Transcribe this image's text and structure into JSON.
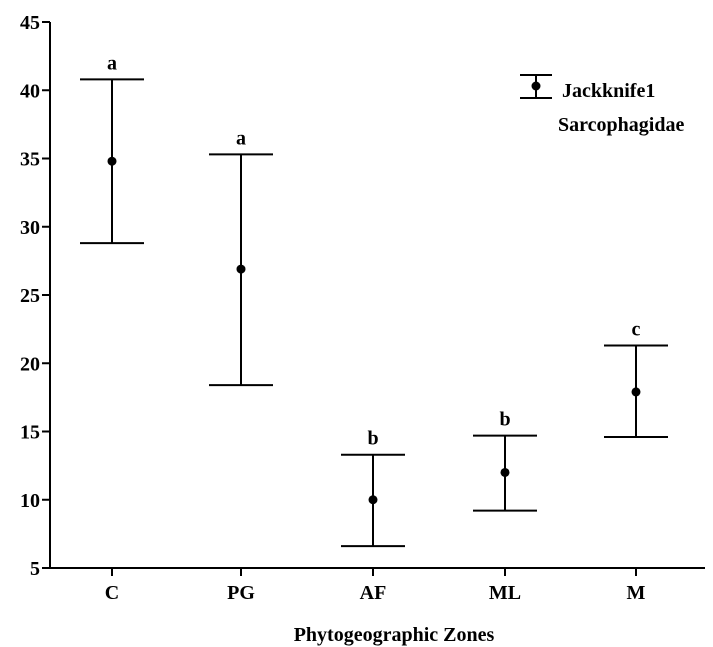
{
  "chart_data": {
    "type": "errorbar",
    "title": "",
    "xlabel": "Phytogeographic Zones",
    "ylabel": "",
    "ylim": [
      5,
      45
    ],
    "yticks": [
      5,
      10,
      15,
      20,
      25,
      30,
      35,
      40,
      45
    ],
    "categories": [
      "C",
      "PG",
      "AF",
      "ML",
      "M"
    ],
    "series": [
      {
        "legend": [
          "Jackknife1",
          "Sarcophagidae"
        ],
        "mean": [
          34.8,
          26.9,
          10.0,
          12.0,
          17.9
        ],
        "lower": [
          28.8,
          18.4,
          6.6,
          9.2,
          14.6
        ],
        "upper": [
          40.8,
          35.3,
          13.3,
          14.7,
          21.3
        ],
        "groups": [
          "a",
          "a",
          "b",
          "b",
          "c"
        ]
      }
    ],
    "legend_position": "top-right",
    "grid": false
  }
}
